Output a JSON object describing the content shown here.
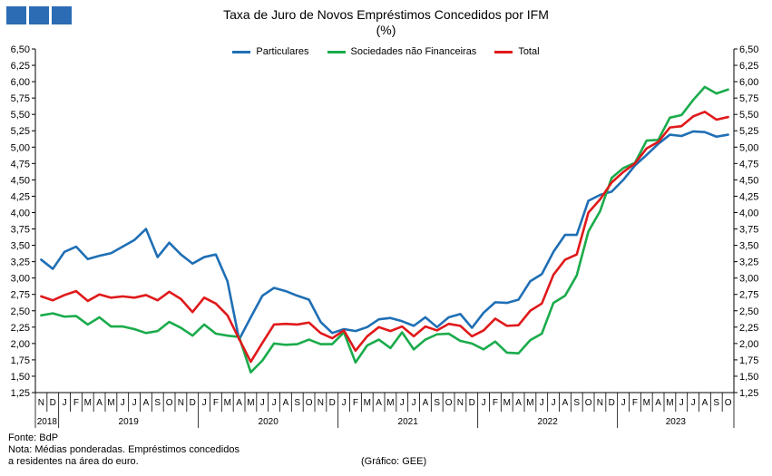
{
  "title": "Taxa de Juro de Novos Empréstimos  Concedidos por IFM",
  "subtitle": "(%)",
  "footer": {
    "source": "Fonte: BdP",
    "note_line1": "Nota: Médias ponderadas. Empréstimos concedidos",
    "note_line2": "a residentes na área do euro.",
    "credit": "(Gráfico: GEE)"
  },
  "chart_data": {
    "type": "line",
    "title": "Taxa de Juro de Novos Empréstimos  Concedidos por IFM",
    "subtitle": "(%)",
    "ylim": [
      1.25,
      6.5
    ],
    "y_ticks": [
      "1,25",
      "1,50",
      "1,75",
      "2,00",
      "2,25",
      "2,50",
      "2,75",
      "3,00",
      "3,25",
      "3,50",
      "3,75",
      "4,00",
      "4,25",
      "4,50",
      "4,75",
      "5,00",
      "5,25",
      "5,50",
      "5,75",
      "6,00",
      "6,25",
      "6,50"
    ],
    "y_axes": "left and right",
    "grid": false,
    "legend_position": "top",
    "month_labels": [
      "N",
      "D",
      "J",
      "F",
      "M",
      "A",
      "M",
      "J",
      "J",
      "A",
      "S",
      "O",
      "N",
      "D",
      "J",
      "F",
      "M",
      "A",
      "M",
      "J",
      "J",
      "A",
      "S",
      "O",
      "N",
      "D",
      "J",
      "F",
      "M",
      "A",
      "M",
      "J",
      "J",
      "A",
      "S",
      "O",
      "N",
      "D",
      "J",
      "F",
      "M",
      "A",
      "M",
      "J",
      "J",
      "A",
      "S",
      "O",
      "N",
      "D",
      "J",
      "F",
      "M",
      "A",
      "M",
      "J",
      "J",
      "A",
      "S",
      "O"
    ],
    "year_groups": [
      {
        "label": "2018",
        "start": 0,
        "end": 1
      },
      {
        "label": "2019",
        "start": 2,
        "end": 13
      },
      {
        "label": "2020",
        "start": 14,
        "end": 25
      },
      {
        "label": "2021",
        "start": 26,
        "end": 37
      },
      {
        "label": "2022",
        "start": 38,
        "end": 49
      },
      {
        "label": "2023",
        "start": 50,
        "end": 59
      }
    ],
    "series": [
      {
        "name": "Particulares",
        "color": "#1f6fb5",
        "values": [
          3.28,
          3.14,
          3.4,
          3.48,
          3.29,
          3.34,
          3.38,
          3.48,
          3.58,
          3.75,
          3.32,
          3.54,
          3.36,
          3.22,
          3.32,
          3.36,
          2.95,
          2.06,
          2.4,
          2.73,
          2.85,
          2.8,
          2.73,
          2.67,
          2.33,
          2.16,
          2.22,
          2.19,
          2.25,
          2.37,
          2.39,
          2.34,
          2.27,
          2.4,
          2.25,
          2.4,
          2.45,
          2.24,
          2.47,
          2.63,
          2.62,
          2.67,
          2.95,
          3.06,
          3.4,
          3.66,
          3.66,
          4.18,
          4.27,
          4.32,
          4.5,
          4.72,
          4.88,
          5.05,
          5.19,
          5.17,
          5.24,
          5.23,
          5.16,
          5.19
        ]
      },
      {
        "name": "Sociedades não Financeiras",
        "color": "#1aab4b",
        "values": [
          2.43,
          2.46,
          2.41,
          2.42,
          2.29,
          2.4,
          2.26,
          2.26,
          2.22,
          2.16,
          2.19,
          2.33,
          2.24,
          2.12,
          2.29,
          2.15,
          2.12,
          2.1,
          1.56,
          1.74,
          2.0,
          1.98,
          1.99,
          2.06,
          1.99,
          1.99,
          2.17,
          1.71,
          1.97,
          2.06,
          1.93,
          2.17,
          1.91,
          2.06,
          2.14,
          2.15,
          2.04,
          2.0,
          1.91,
          2.03,
          1.86,
          1.85,
          2.05,
          2.15,
          2.62,
          2.73,
          3.04,
          3.71,
          4.02,
          4.53,
          4.68,
          4.76,
          5.1,
          5.11,
          5.45,
          5.49,
          5.72,
          5.92,
          5.82,
          5.88
        ]
      },
      {
        "name": "Total",
        "color": "#e0191b",
        "values": [
          2.72,
          2.66,
          2.74,
          2.8,
          2.65,
          2.75,
          2.7,
          2.72,
          2.7,
          2.74,
          2.66,
          2.79,
          2.68,
          2.48,
          2.7,
          2.61,
          2.43,
          2.07,
          1.72,
          2.01,
          2.29,
          2.3,
          2.29,
          2.32,
          2.16,
          2.08,
          2.2,
          1.89,
          2.11,
          2.25,
          2.19,
          2.26,
          2.11,
          2.26,
          2.2,
          2.3,
          2.27,
          2.11,
          2.2,
          2.38,
          2.27,
          2.28,
          2.5,
          2.61,
          3.05,
          3.28,
          3.36,
          4.0,
          4.2,
          4.46,
          4.62,
          4.75,
          4.98,
          5.08,
          5.3,
          5.32,
          5.47,
          5.54,
          5.42,
          5.46
        ]
      }
    ]
  }
}
